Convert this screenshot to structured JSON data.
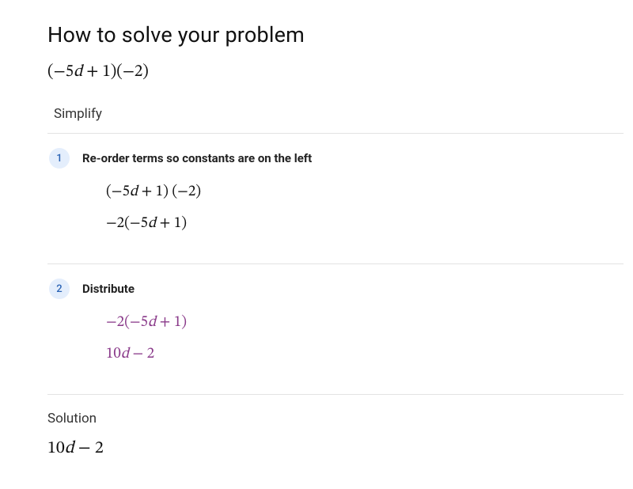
{
  "title": "How to solve your problem",
  "problem_math": "(−5d + 1)(−2)",
  "section_label": "Simplify",
  "steps": [
    {
      "num": "1",
      "title": "Re-order terms so constants are on the left",
      "lines": [
        {
          "math": "(−5d + 1) (−2)",
          "highlight": false
        },
        {
          "math": "−2(−5d + 1)",
          "highlight": false
        }
      ]
    },
    {
      "num": "2",
      "title": "Distribute",
      "lines": [
        {
          "math": "−2(−5d + 1)",
          "highlight": true
        },
        {
          "math": "10d − 2",
          "highlight": true
        }
      ]
    }
  ],
  "solution_label": "Solution",
  "solution_math": "10d − 2",
  "colors": {
    "highlight": "#8a3a8a",
    "badge_bg": "#e4eefc",
    "badge_fg": "#2b64b5",
    "rule": "#e3e3e3"
  },
  "typography": {
    "title_fontsize": 27,
    "problem_fontsize": 21,
    "step_title_fontsize": 15,
    "math_fontsize": 19,
    "solution_math_fontsize": 22
  }
}
